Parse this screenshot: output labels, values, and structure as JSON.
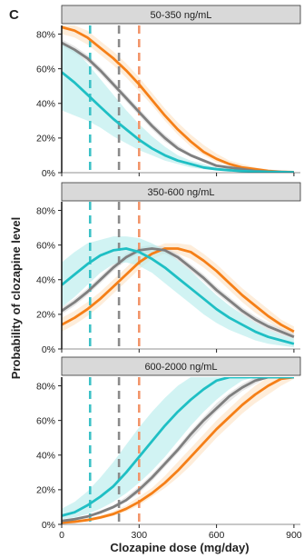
{
  "chart_data": {
    "type": "line",
    "panel_letter": "C",
    "xlabel": "Clozapine dose (mg/day)",
    "ylabel": "Probability of clozapine level",
    "xlim": [
      0,
      925
    ],
    "ylim": [
      0,
      0.85
    ],
    "x_ticks": [
      0,
      300,
      600,
      900
    ],
    "x_tick_labels": [
      "0",
      "300",
      "600",
      "900"
    ],
    "y_ticks": [
      0,
      0.2,
      0.4,
      0.6,
      0.8
    ],
    "y_tick_labels": [
      "0%",
      "20%",
      "40%",
      "60%",
      "80%"
    ],
    "grid": false,
    "legend": "none",
    "series_colors": [
      "#1fbfc4",
      "#7f7f7f",
      "#f57f17"
    ],
    "ribbon_colors": [
      "#b8ecec",
      "#d9d9d9",
      "#fde3c6"
    ],
    "vlines": [
      {
        "x": 110,
        "color": "#3cc1c6"
      },
      {
        "x": 222,
        "color": "#8a8a8a"
      },
      {
        "x": 300,
        "color": "#f2956a"
      }
    ],
    "x": [
      0,
      50,
      100,
      150,
      200,
      250,
      300,
      350,
      400,
      450,
      500,
      550,
      600,
      650,
      700,
      750,
      800,
      850,
      900
    ],
    "panels": [
      {
        "title": "50-350 ng/mL",
        "series": [
          {
            "color": "#f57f17",
            "values": [
              0.84,
              0.82,
              0.78,
              0.72,
              0.66,
              0.59,
              0.51,
              0.42,
              0.33,
              0.25,
              0.18,
              0.12,
              0.08,
              0.05,
              0.03,
              0.02,
              0.01,
              0.005,
              0.003
            ],
            "lower": [
              0.8,
              0.78,
              0.74,
              0.68,
              0.62,
              0.55,
              0.47,
              0.39,
              0.3,
              0.22,
              0.15,
              0.1,
              0.06,
              0.04,
              0.02,
              0.01,
              0.006,
              0.003,
              0.001
            ],
            "upper": [
              0.88,
              0.86,
              0.82,
              0.76,
              0.7,
              0.63,
              0.55,
              0.46,
              0.37,
              0.29,
              0.22,
              0.16,
              0.11,
              0.07,
              0.05,
              0.03,
              0.02,
              0.012,
              0.008
            ]
          },
          {
            "color": "#7f7f7f",
            "values": [
              0.75,
              0.71,
              0.66,
              0.59,
              0.51,
              0.43,
              0.35,
              0.27,
              0.2,
              0.14,
              0.1,
              0.07,
              0.04,
              0.03,
              0.02,
              0.01,
              0.006,
              0.004,
              0.002
            ],
            "lower": [
              0.73,
              0.69,
              0.64,
              0.57,
              0.49,
              0.41,
              0.33,
              0.25,
              0.18,
              0.13,
              0.09,
              0.06,
              0.035,
              0.025,
              0.015,
              0.008,
              0.004,
              0.002,
              0.001
            ],
            "upper": [
              0.77,
              0.73,
              0.68,
              0.61,
              0.53,
              0.45,
              0.37,
              0.29,
              0.22,
              0.16,
              0.11,
              0.08,
              0.05,
              0.035,
              0.025,
              0.015,
              0.009,
              0.006,
              0.004
            ]
          },
          {
            "color": "#1fbfc4",
            "values": [
              0.58,
              0.52,
              0.45,
              0.38,
              0.31,
              0.25,
              0.19,
              0.14,
              0.1,
              0.07,
              0.05,
              0.03,
              0.02,
              0.014,
              0.009,
              0.006,
              0.004,
              0.003,
              0.002
            ],
            "lower": [
              0.36,
              0.33,
              0.3,
              0.26,
              0.21,
              0.17,
              0.13,
              0.1,
              0.07,
              0.05,
              0.03,
              0.02,
              0.014,
              0.009,
              0.006,
              0.004,
              0.002,
              0.001,
              0.001
            ],
            "upper": [
              0.76,
              0.71,
              0.63,
              0.54,
              0.45,
              0.36,
              0.28,
              0.21,
              0.15,
              0.1,
              0.07,
              0.05,
              0.03,
              0.02,
              0.014,
              0.009,
              0.006,
              0.004,
              0.003
            ]
          }
        ]
      },
      {
        "title": "350-600 ng/mL",
        "series": [
          {
            "color": "#f57f17",
            "values": [
              0.14,
              0.18,
              0.23,
              0.29,
              0.36,
              0.43,
              0.5,
              0.55,
              0.58,
              0.58,
              0.56,
              0.51,
              0.45,
              0.38,
              0.31,
              0.25,
              0.19,
              0.14,
              0.1
            ],
            "lower": [
              0.1,
              0.14,
              0.19,
              0.25,
              0.32,
              0.39,
              0.46,
              0.52,
              0.55,
              0.55,
              0.52,
              0.47,
              0.41,
              0.34,
              0.27,
              0.21,
              0.16,
              0.11,
              0.08
            ],
            "upper": [
              0.18,
              0.22,
              0.27,
              0.33,
              0.4,
              0.47,
              0.54,
              0.58,
              0.61,
              0.61,
              0.6,
              0.55,
              0.49,
              0.42,
              0.35,
              0.29,
              0.23,
              0.17,
              0.13
            ]
          },
          {
            "color": "#7f7f7f",
            "values": [
              0.22,
              0.27,
              0.33,
              0.4,
              0.47,
              0.53,
              0.57,
              0.58,
              0.57,
              0.53,
              0.47,
              0.41,
              0.34,
              0.28,
              0.22,
              0.17,
              0.13,
              0.1,
              0.07
            ],
            "lower": [
              0.2,
              0.25,
              0.31,
              0.38,
              0.45,
              0.51,
              0.55,
              0.56,
              0.55,
              0.51,
              0.45,
              0.39,
              0.32,
              0.26,
              0.2,
              0.15,
              0.11,
              0.08,
              0.06
            ],
            "upper": [
              0.24,
              0.29,
              0.35,
              0.42,
              0.49,
              0.55,
              0.59,
              0.6,
              0.59,
              0.55,
              0.49,
              0.43,
              0.36,
              0.3,
              0.24,
              0.19,
              0.15,
              0.12,
              0.09
            ]
          },
          {
            "color": "#1fbfc4",
            "values": [
              0.37,
              0.43,
              0.49,
              0.54,
              0.57,
              0.58,
              0.56,
              0.52,
              0.47,
              0.41,
              0.35,
              0.29,
              0.23,
              0.18,
              0.14,
              0.1,
              0.07,
              0.05,
              0.03
            ],
            "lower": [
              0.24,
              0.3,
              0.37,
              0.44,
              0.49,
              0.5,
              0.48,
              0.44,
              0.38,
              0.32,
              0.26,
              0.2,
              0.15,
              0.11,
              0.08,
              0.05,
              0.03,
              0.02,
              0.01
            ],
            "upper": [
              0.5,
              0.56,
              0.61,
              0.63,
              0.65,
              0.65,
              0.64,
              0.61,
              0.57,
              0.51,
              0.45,
              0.38,
              0.31,
              0.25,
              0.2,
              0.15,
              0.11,
              0.08,
              0.06
            ]
          }
        ]
      },
      {
        "title": "600-2000 ng/mL",
        "series": [
          {
            "color": "#f57f17",
            "values": [
              0.01,
              0.015,
              0.025,
              0.04,
              0.06,
              0.09,
              0.13,
              0.18,
              0.24,
              0.31,
              0.39,
              0.47,
              0.55,
              0.62,
              0.69,
              0.75,
              0.8,
              0.84,
              0.88
            ],
            "lower": [
              0.005,
              0.01,
              0.018,
              0.03,
              0.05,
              0.075,
              0.11,
              0.16,
              0.21,
              0.27,
              0.34,
              0.42,
              0.5,
              0.57,
              0.64,
              0.7,
              0.75,
              0.8,
              0.84
            ],
            "upper": [
              0.02,
              0.025,
              0.035,
              0.05,
              0.075,
              0.11,
              0.16,
              0.21,
              0.28,
              0.36,
              0.44,
              0.52,
              0.6,
              0.67,
              0.74,
              0.8,
              0.85,
              0.88,
              0.91
            ]
          },
          {
            "color": "#7f7f7f",
            "values": [
              0.02,
              0.03,
              0.045,
              0.07,
              0.1,
              0.14,
              0.2,
              0.27,
              0.35,
              0.43,
              0.52,
              0.6,
              0.67,
              0.74,
              0.79,
              0.83,
              0.87,
              0.89,
              0.91
            ],
            "lower": [
              0.015,
              0.025,
              0.04,
              0.06,
              0.09,
              0.13,
              0.18,
              0.25,
              0.33,
              0.41,
              0.49,
              0.57,
              0.65,
              0.71,
              0.77,
              0.81,
              0.85,
              0.88,
              0.9
            ],
            "upper": [
              0.025,
              0.035,
              0.05,
              0.08,
              0.11,
              0.16,
              0.22,
              0.29,
              0.37,
              0.45,
              0.54,
              0.62,
              0.7,
              0.76,
              0.81,
              0.85,
              0.89,
              0.91,
              0.93
            ]
          },
          {
            "color": "#1fbfc4",
            "values": [
              0.05,
              0.07,
              0.11,
              0.16,
              0.22,
              0.3,
              0.39,
              0.48,
              0.57,
              0.65,
              0.72,
              0.78,
              0.83,
              0.87,
              0.9,
              0.92,
              0.94,
              0.95,
              0.96
            ],
            "lower": [
              0.03,
              0.04,
              0.06,
              0.09,
              0.13,
              0.18,
              0.24,
              0.31,
              0.39,
              0.48,
              0.57,
              0.65,
              0.72,
              0.78,
              0.83,
              0.87,
              0.9,
              0.92,
              0.93
            ],
            "upper": [
              0.09,
              0.13,
              0.19,
              0.27,
              0.36,
              0.46,
              0.56,
              0.65,
              0.73,
              0.8,
              0.85,
              0.89,
              0.92,
              0.94,
              0.95,
              0.96,
              0.97,
              0.97,
              0.98
            ]
          }
        ]
      }
    ]
  }
}
